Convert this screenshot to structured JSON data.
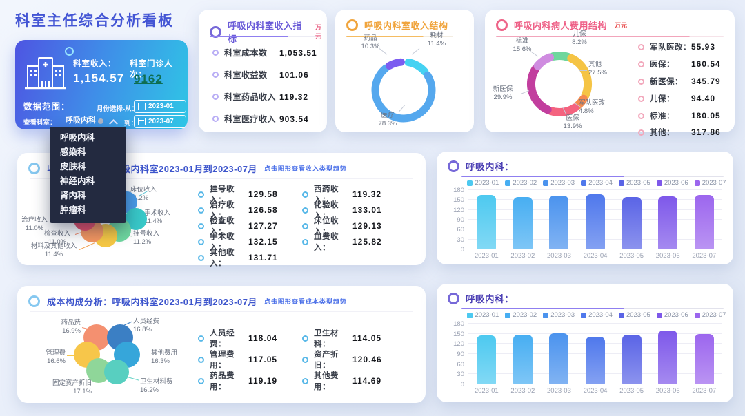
{
  "page": {
    "title": "科室主任综合分析看板"
  },
  "colors": {
    "title_blue": "#4355d4",
    "panel_income_purple": "#6a5bd8",
    "panel_structure_orange": "#f0a43c",
    "panel_fee_pink": "#ee5f86",
    "link_green": "#0e6e52"
  },
  "summary_card": {
    "income_label": "科室收入：",
    "income_value": "1,154.57",
    "visits_label": "科室门诊人次：",
    "visits_value": "9162",
    "data_range_label": "数据范围：",
    "month_from_label": "月份选择-从：",
    "month_from_value": "2023-01",
    "month_to_label": "到：",
    "month_to_value": "2023-07",
    "dept_select_label": "查看科室：",
    "dept_select_value": "呼吸内科"
  },
  "dept_dropdown": {
    "options": [
      "呼吸内科",
      "感染科",
      "皮肤科",
      "神经内科",
      "肾内科",
      "肿瘤科"
    ]
  },
  "income_indicators": {
    "title": "呼吸内科室收入指标",
    "unit": "万元",
    "items": [
      {
        "label": "科室成本数",
        "value": "1,053.51"
      },
      {
        "label": "科室收益数",
        "value": "101.06"
      },
      {
        "label": "科室药品收入",
        "value": "119.32"
      },
      {
        "label": "科室医疗收入",
        "value": "903.54"
      }
    ]
  },
  "income_analysis": {
    "title": "收入构成分析：呼吸内科室2023-01月到2023-07月",
    "hint": "点击图形查看收入类型趋势",
    "metrics_col1": [
      {
        "label": "挂号收入：",
        "value": "129.58"
      },
      {
        "label": "治疗收入：",
        "value": "126.58"
      },
      {
        "label": "检查收入：",
        "value": "127.27"
      },
      {
        "label": "手术收入：",
        "value": "132.15"
      },
      {
        "label": "其他收入：",
        "value": "131.71"
      }
    ],
    "metrics_col2": [
      {
        "label": "西药收入：",
        "value": "119.32"
      },
      {
        "label": "化验收入：",
        "value": "133.01"
      },
      {
        "label": "床位收入：",
        "value": "129.13"
      },
      {
        "label": "血费收入：",
        "value": "125.82"
      }
    ]
  },
  "cost_analysis": {
    "title": "成本构成分析：呼吸内科室2023-01月到2023-07月",
    "hint": "点击图形查看成本类型趋势",
    "metrics_col1": [
      {
        "label": "人员经费：",
        "value": "118.04"
      },
      {
        "label": "管理费用：",
        "value": "117.05"
      },
      {
        "label": "药品费用：",
        "value": "119.19"
      }
    ],
    "metrics_col2": [
      {
        "label": "卫生材料：",
        "value": "114.05"
      },
      {
        "label": "资产折旧：",
        "value": "120.46"
      },
      {
        "label": "其他费用：",
        "value": "114.69"
      }
    ]
  },
  "chart_data": [
    {
      "name": "income_structure_donut",
      "type": "pie",
      "title": "呼吸内科室收入结构",
      "segments": [
        {
          "label": "医疗",
          "pct": 78.3,
          "color": "#55a8ee"
        },
        {
          "label": "药品",
          "pct": 10.3,
          "color": "#7c5cf0"
        },
        {
          "label": "耗材",
          "pct": 11.4,
          "color": "#45d2f2"
        }
      ]
    },
    {
      "name": "patient_fee_structure_donut",
      "type": "pie",
      "title": "呼吸内科病人费用结构",
      "unit": "万元",
      "segments": [
        {
          "label": "儿保",
          "pct": 8.2,
          "color": "#6ed69c"
        },
        {
          "label": "其他",
          "pct": 27.5,
          "color": "#f5c445"
        },
        {
          "label": "军队医改",
          "pct": 4.8,
          "color": "#f58a4e"
        },
        {
          "label": "医保",
          "pct": 13.9,
          "color": "#f4637f"
        },
        {
          "label": "新医保",
          "pct": 29.9,
          "color": "#c23e9e"
        },
        {
          "label": "标准",
          "pct": 15.6,
          "color": "#cf8ce0"
        }
      ],
      "legend": [
        {
          "label": "军队医改：",
          "value": "55.93"
        },
        {
          "label": "医保：",
          "value": "160.54"
        },
        {
          "label": "新医保：",
          "value": "345.79"
        },
        {
          "label": "儿保：",
          "value": "94.40"
        },
        {
          "label": "标准：",
          "value": "180.05"
        },
        {
          "label": "其他：",
          "value": "317.86"
        }
      ]
    },
    {
      "name": "income_composition_flower",
      "type": "pie",
      "title": "收入构成分析",
      "labels": [
        {
          "label": "化验收入",
          "pct": 11.5
        },
        {
          "label": "床位收入",
          "pct": 11.2
        },
        {
          "label": "手术收入",
          "pct": 11.4
        },
        {
          "label": "挂号收入",
          "pct": 11.2
        },
        {
          "label": "材料及其他收入",
          "pct": 11.4
        },
        {
          "label": "检查收入",
          "pct": 11.0
        },
        {
          "label": "治疗收入",
          "pct": 11.0
        }
      ],
      "petal_colors": [
        "#b06ae0",
        "#4a9ce8",
        "#38c8c8",
        "#6fd79f",
        "#f6c844",
        "#f49660",
        "#e8506a",
        "#d84f88",
        "#f4a455"
      ]
    },
    {
      "name": "cost_composition_flower",
      "type": "pie",
      "title": "成本构成分析",
      "labels": [
        {
          "label": "药品费",
          "pct": 16.9,
          "color": "#f49070"
        },
        {
          "label": "人员经费",
          "pct": 16.8,
          "color": "#3b7fc4"
        },
        {
          "label": "管理费",
          "pct": 16.6,
          "color": "#f7c64a"
        },
        {
          "label": "其他费用",
          "pct": 16.3,
          "color": "#36a6da"
        },
        {
          "label": "固定资产折旧",
          "pct": 17.1,
          "color": "#8fd699"
        },
        {
          "label": "卫生材料费",
          "pct": 16.2,
          "color": "#58cfc0"
        }
      ]
    },
    {
      "name": "monthly_income_bar",
      "type": "bar",
      "title": "呼吸内科：",
      "categories": [
        "2023-01",
        "2023-02",
        "2023-03",
        "2023-04",
        "2023-05",
        "2023-06",
        "2023-07"
      ],
      "values": [
        165,
        159,
        163,
        168,
        159,
        162,
        165
      ],
      "ylim": [
        0,
        180
      ],
      "yticks": [
        0,
        30,
        60,
        90,
        120,
        150,
        180
      ],
      "colors": [
        "#4dc9f0",
        "#47aef2",
        "#4b93ee",
        "#4f78ec",
        "#5a64e6",
        "#7e58ea",
        "#9c66ee"
      ],
      "legend_position": "top"
    },
    {
      "name": "monthly_cost_bar",
      "type": "bar",
      "title": "呼吸内科：",
      "categories": [
        "2023-01",
        "2023-02",
        "2023-03",
        "2023-04",
        "2023-05",
        "2023-06",
        "2023-07"
      ],
      "values": [
        145,
        148,
        151,
        142,
        147,
        160,
        149
      ],
      "ylim": [
        0,
        180
      ],
      "yticks": [
        0,
        30,
        60,
        90,
        120,
        150,
        180
      ],
      "colors": [
        "#4dc9f0",
        "#47aef2",
        "#4b93ee",
        "#4f78ec",
        "#5a64e6",
        "#7e58ea",
        "#9c66ee"
      ],
      "legend_position": "top"
    }
  ]
}
